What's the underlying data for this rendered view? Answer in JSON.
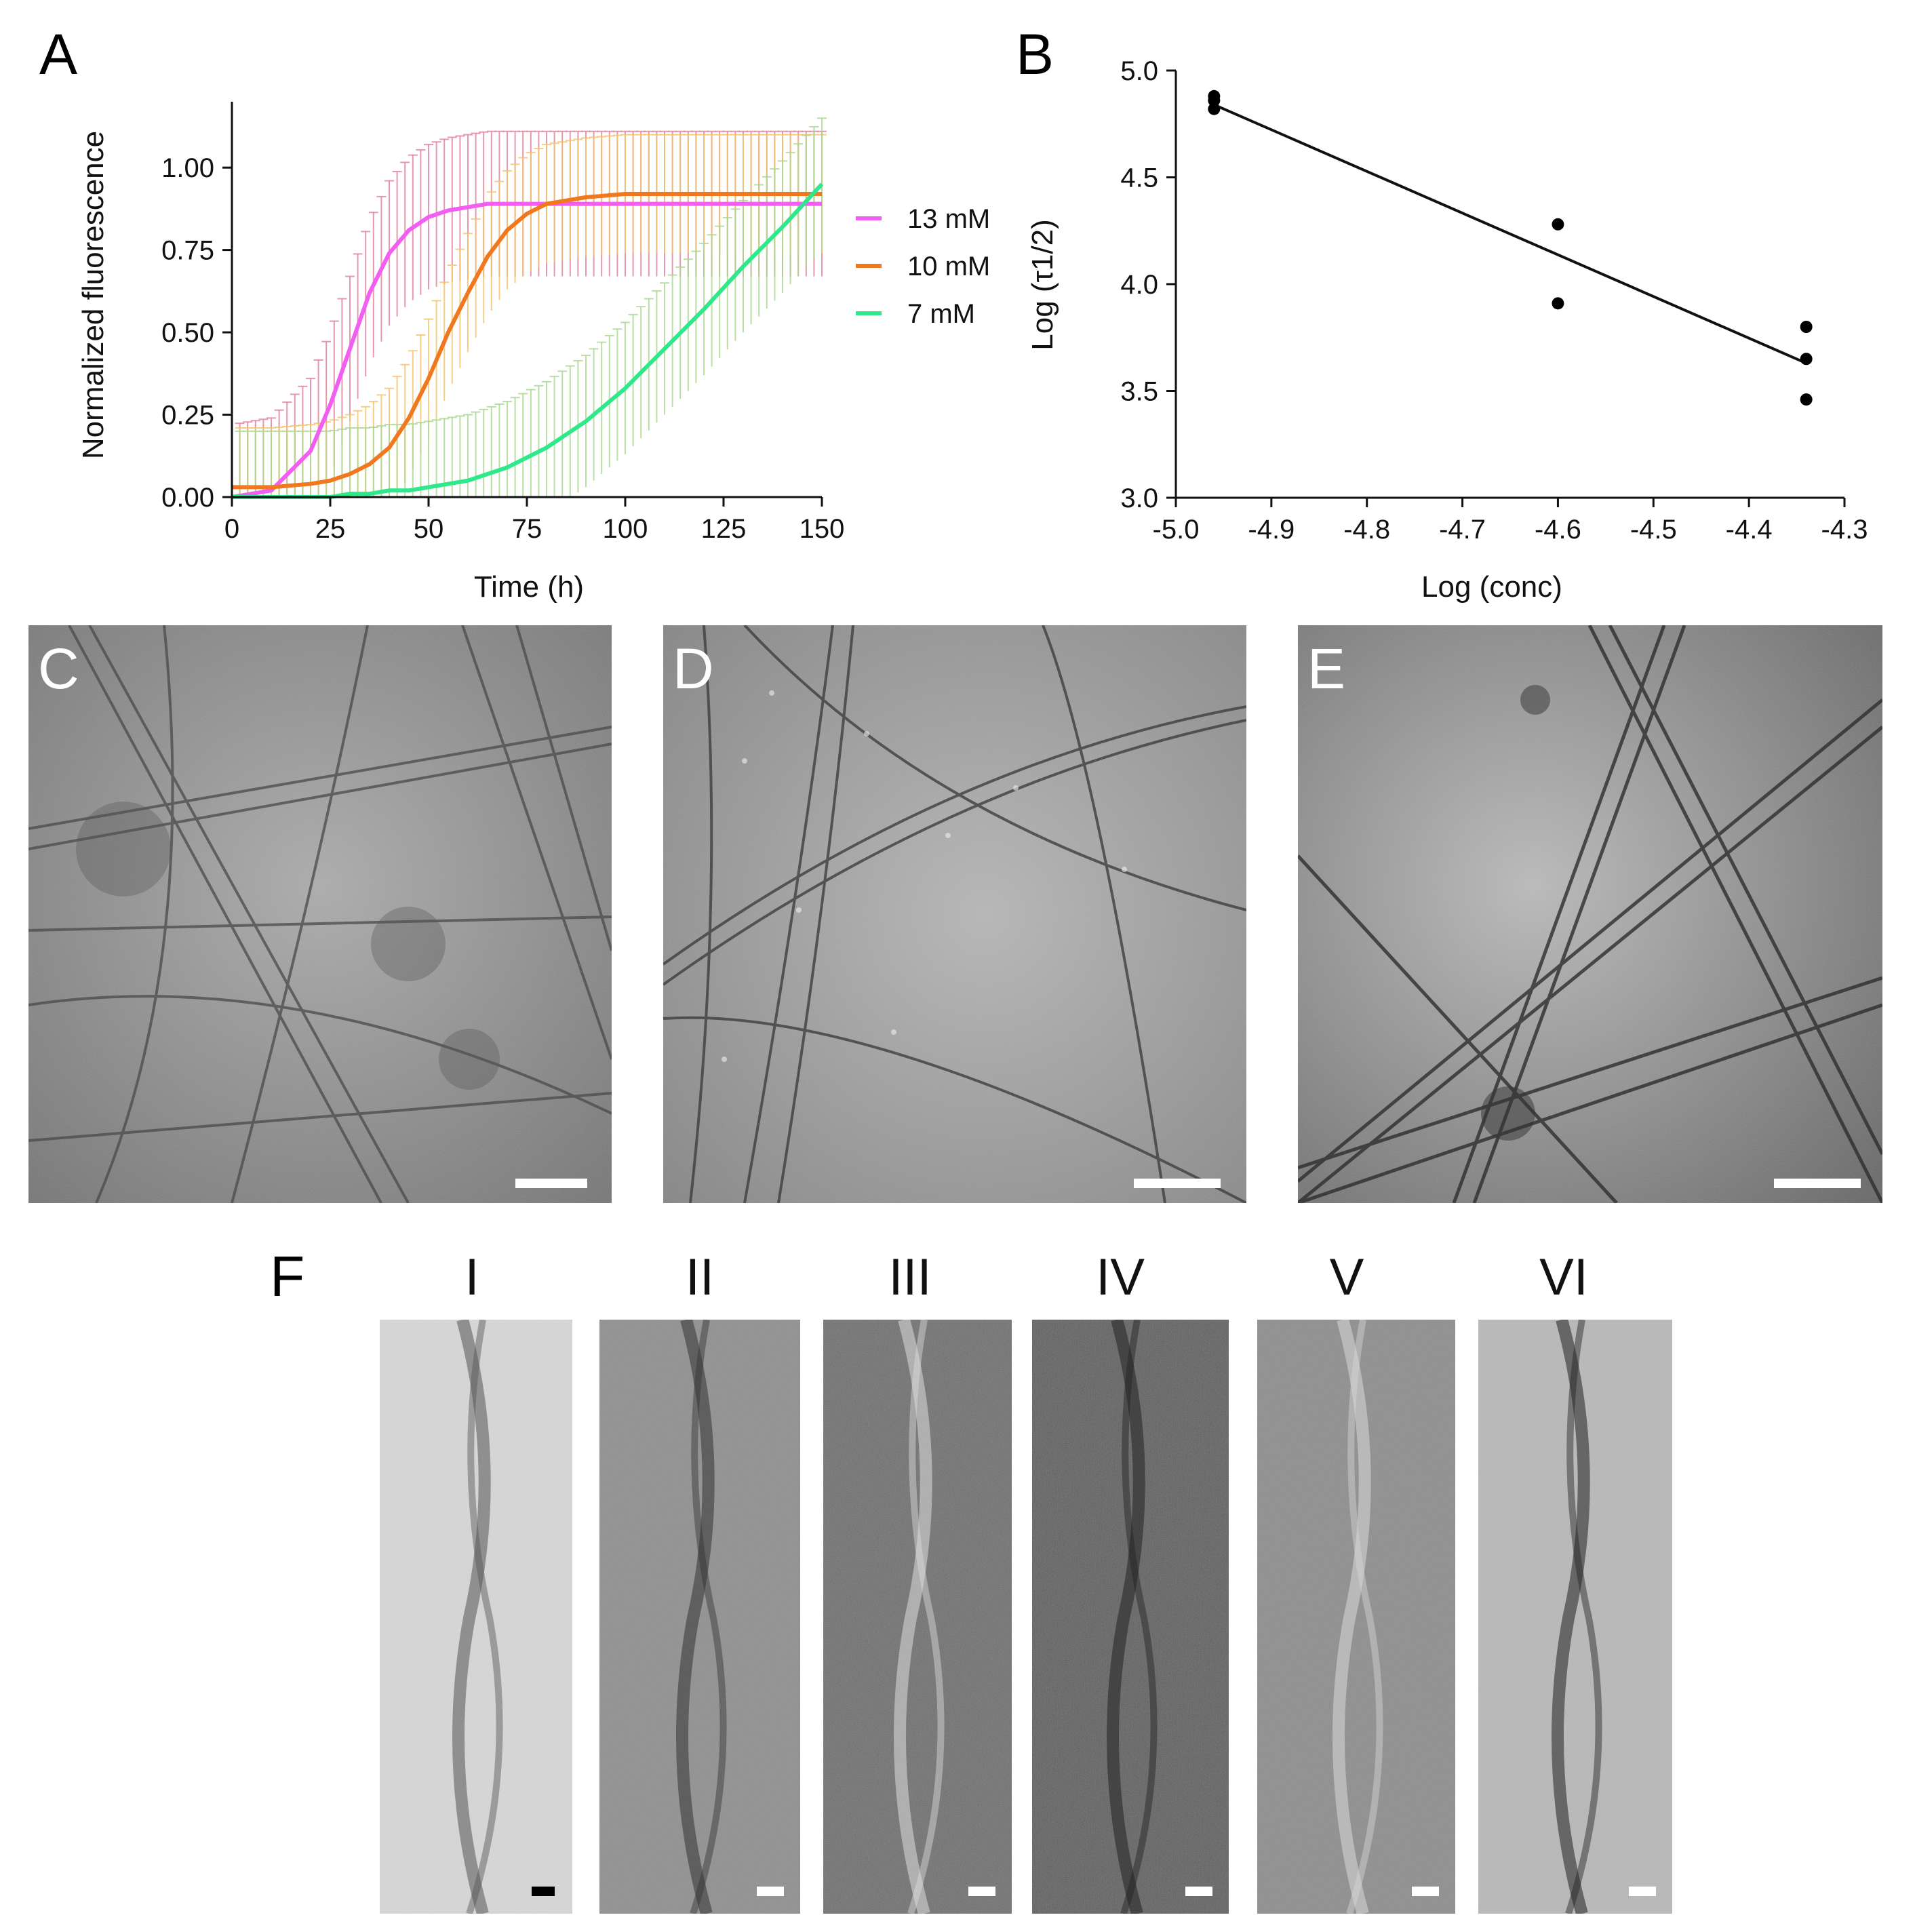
{
  "figure": {
    "panel_labels": [
      "A",
      "B",
      "C",
      "D",
      "E",
      "F"
    ],
    "panel_f_sublabels": [
      "I",
      "II",
      "III",
      "IV",
      "V",
      "VI"
    ]
  },
  "colors": {
    "13mM": "#f25ef2",
    "10mM": "#f0781e",
    "7mM": "#2ee88a",
    "13mM_err": "#e0809a",
    "10mM_err": "#f3c46a",
    "7mM_err": "#a8d890",
    "fit_line": "#111111",
    "points": "#000000"
  },
  "chart_data": [
    {
      "panel": "A",
      "type": "line",
      "title": "",
      "xlabel": "Time (h)",
      "ylabel": "Normalized fluorescence",
      "xlim": [
        0,
        150
      ],
      "ylim": [
        0,
        1.2
      ],
      "xticks": [
        "0",
        "25",
        "50",
        "75",
        "100",
        "125",
        "150"
      ],
      "yticks": [
        "0.00",
        "0.25",
        "0.50",
        "0.75",
        "1.00"
      ],
      "legend_position": "right",
      "x": [
        0,
        10,
        20,
        25,
        30,
        35,
        40,
        45,
        50,
        55,
        60,
        65,
        70,
        75,
        80,
        90,
        100,
        110,
        120,
        130,
        140,
        150
      ],
      "series": [
        {
          "name": "13 mM",
          "values": [
            0.0,
            0.02,
            0.14,
            0.28,
            0.45,
            0.62,
            0.74,
            0.81,
            0.85,
            0.87,
            0.88,
            0.89,
            0.89,
            0.89,
            0.89,
            0.89,
            0.89,
            0.89,
            0.89,
            0.89,
            0.89,
            0.89
          ],
          "error": 0.22
        },
        {
          "name": "10 mM",
          "values": [
            0.03,
            0.03,
            0.04,
            0.05,
            0.07,
            0.1,
            0.15,
            0.24,
            0.36,
            0.5,
            0.62,
            0.73,
            0.81,
            0.86,
            0.89,
            0.91,
            0.92,
            0.92,
            0.92,
            0.92,
            0.92,
            0.92
          ],
          "error": 0.18
        },
        {
          "name": "7 mM",
          "values": [
            0.0,
            0.0,
            0.0,
            0.0,
            0.01,
            0.01,
            0.02,
            0.02,
            0.03,
            0.04,
            0.05,
            0.07,
            0.09,
            0.12,
            0.15,
            0.23,
            0.33,
            0.45,
            0.57,
            0.7,
            0.82,
            0.95
          ],
          "error": 0.2
        }
      ]
    },
    {
      "panel": "B",
      "type": "scatter",
      "title": "",
      "xlabel": "Log (conc)",
      "ylabel": "Log (τ1/2)",
      "xlim": [
        -5.0,
        -4.3
      ],
      "ylim": [
        3.0,
        5.0
      ],
      "xticks": [
        "-5.0",
        "-4.9",
        "-4.8",
        "-4.7",
        "-4.6",
        "-4.5",
        "-4.4",
        "-4.3"
      ],
      "yticks": [
        "3.0",
        "3.5",
        "4.0",
        "4.5",
        "5.0"
      ],
      "points": [
        {
          "x": -4.96,
          "y": 4.88
        },
        {
          "x": -4.96,
          "y": 4.86
        },
        {
          "x": -4.96,
          "y": 4.82
        },
        {
          "x": -4.6,
          "y": 4.28
        },
        {
          "x": -4.6,
          "y": 3.91
        },
        {
          "x": -4.34,
          "y": 3.8
        },
        {
          "x": -4.34,
          "y": 3.65
        },
        {
          "x": -4.34,
          "y": 3.46
        }
      ],
      "fit_line": {
        "x": [
          -4.96,
          -4.34
        ],
        "y": [
          4.84,
          3.63
        ]
      }
    }
  ]
}
